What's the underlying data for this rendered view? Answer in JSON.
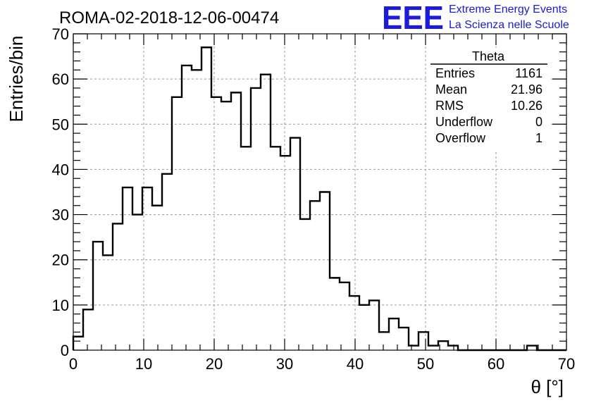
{
  "title": "ROMA-02-2018-12-06-00474",
  "logo": {
    "mark": "EEE",
    "line1": "Extreme Energy Events",
    "line2": "La Scienza nelle Scuole",
    "color": "#1b1bd9"
  },
  "stats": {
    "name": "Theta",
    "rows": [
      {
        "label": "Entries",
        "value": "1161"
      },
      {
        "label": "Mean",
        "value": "21.96"
      },
      {
        "label": "RMS",
        "value": "10.26"
      },
      {
        "label": "Underflow",
        "value": "0"
      },
      {
        "label": "Overflow",
        "value": "1"
      }
    ]
  },
  "chart_data": {
    "type": "bar",
    "xlabel": "θ [°]",
    "ylabel": "Entries/bin",
    "xlim": [
      0,
      70
    ],
    "ylim": [
      0,
      70
    ],
    "bin_width": 1.4,
    "x_ticks": [
      "0",
      "10",
      "20",
      "30",
      "40",
      "50",
      "60",
      "70"
    ],
    "y_ticks": [
      "0",
      "10",
      "20",
      "30",
      "40",
      "50",
      "60",
      "70"
    ],
    "grid": true,
    "values": [
      3,
      9,
      24,
      21,
      28,
      36,
      30,
      36,
      32,
      39,
      56,
      63,
      62,
      67,
      56,
      55,
      57,
      45,
      58,
      61,
      45,
      43,
      47,
      29,
      33,
      35,
      16,
      15,
      12,
      10,
      11,
      4,
      7,
      5,
      1,
      4,
      1,
      2,
      1,
      0,
      0,
      0,
      0,
      0,
      0,
      0,
      1,
      0,
      0,
      0
    ]
  }
}
